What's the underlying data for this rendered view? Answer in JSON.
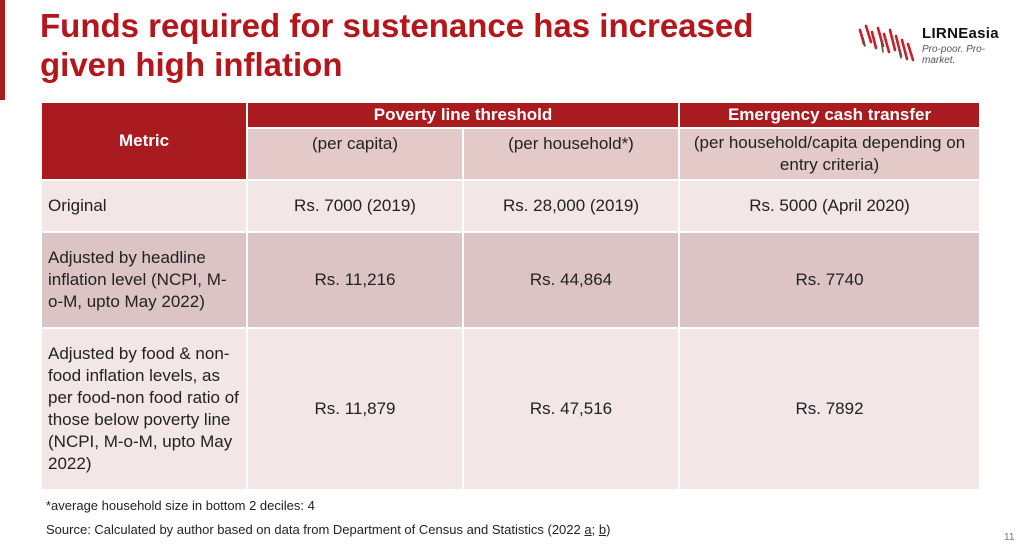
{
  "title": "Funds required for sustenance has increased given high inflation",
  "logo": {
    "name": "LIRNEasia",
    "tagline": "Pro-poor. Pro-market.",
    "icon": "lirneasia-logo-icon",
    "brand_color": "#c8202a"
  },
  "colors": {
    "accent": "#a91b1f",
    "title": "#b5161b",
    "header_sub": "#e4c9c9",
    "row_light": "#f2e6e6",
    "row_dark": "#dcc4c4"
  },
  "table": {
    "metric_header": "Metric",
    "group_headers": {
      "poverty_line": "Poverty line threshold",
      "emergency": "Emergency cash transfer"
    },
    "sub_headers": {
      "per_capita": "(per capita)",
      "per_household": "(per household*)",
      "per_household_capita": "(per household/capita depending on entry criteria)"
    },
    "rows": [
      {
        "metric": "Original",
        "per_capita": "Rs. 7000 (2019)",
        "per_household": "Rs. 28,000 (2019)",
        "emergency": "Rs. 5000 (April 2020)"
      },
      {
        "metric": "Adjusted by headline inflation level (NCPI, M-o-M, upto May 2022)",
        "per_capita": "Rs. 11,216",
        "per_household": "Rs. 44,864",
        "emergency": "Rs. 7740"
      },
      {
        "metric": "Adjusted by food & non-food inflation levels, as per food-non food ratio of those below poverty line (NCPI, M-o-M, upto May 2022)",
        "per_capita": "Rs. 11,879",
        "per_household": "Rs. 47,516",
        "emergency": "Rs. 7892"
      }
    ]
  },
  "footnote": "*average household size in bottom 2 deciles: 4",
  "source": {
    "prefix": "Source: Calculated by author based on data from Department of Census and Statistics (2022 ",
    "link_a": "a",
    "separator": "; ",
    "link_b": "b",
    "suffix": ")"
  },
  "page_number": "11"
}
